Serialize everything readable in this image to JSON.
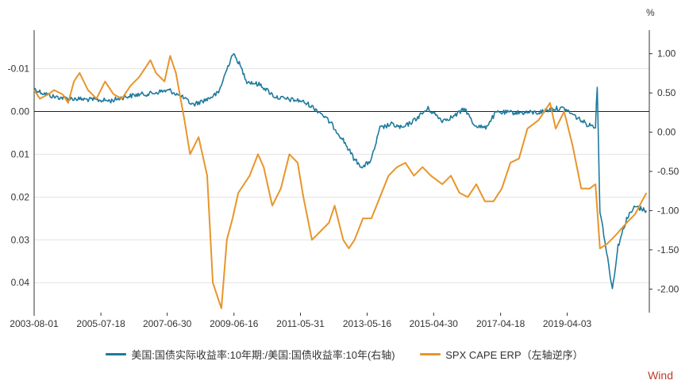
{
  "chart_data": {
    "type": "line",
    "left_axis": {
      "inverted": true,
      "range": [
        0.047,
        -0.019
      ],
      "ticks": [
        -0.01,
        0.0,
        0.01,
        0.02,
        0.03,
        0.04
      ],
      "tick_labels": [
        "-0.01",
        "0.00",
        "0.01",
        "0.02",
        "0.03",
        "0.04"
      ]
    },
    "right_axis": {
      "unit": "%",
      "range": [
        -2.3,
        1.3
      ],
      "ticks": [
        1.0,
        0.5,
        0.0,
        -0.5,
        -1.0,
        -1.5,
        -2.0
      ],
      "tick_labels": [
        "1.00",
        "0.50",
        "0.00",
        "-0.50",
        "-1.00",
        "-1.50",
        "-2.00"
      ]
    },
    "x_axis": {
      "range": [
        "2003-08-01",
        "2021-09-01"
      ],
      "ticks": [
        "2003-08-01",
        "2005-07-18",
        "2007-06-30",
        "2009-06-16",
        "2011-05-31",
        "2013-05-16",
        "2015-04-30",
        "2017-04-18",
        "2019-04-03"
      ]
    },
    "zero_line_axis": "left",
    "grid": "horizontal",
    "series": [
      {
        "name": "美国:国债实际收益率:10年期:/美国:国债收益率:10年(右轴)",
        "axis": "right",
        "color": "#1f7a9c",
        "noisy": true,
        "points": [
          [
            "2003-08-01",
            0.55
          ],
          [
            "2003-11-01",
            0.5
          ],
          [
            "2004-03-01",
            0.45
          ],
          [
            "2004-08-01",
            0.43
          ],
          [
            "2005-01-01",
            0.42
          ],
          [
            "2005-06-01",
            0.41
          ],
          [
            "2005-11-01",
            0.4
          ],
          [
            "2006-04-01",
            0.45
          ],
          [
            "2006-09-01",
            0.48
          ],
          [
            "2007-01-01",
            0.49
          ],
          [
            "2007-05-01",
            0.52
          ],
          [
            "2007-08-01",
            0.53
          ],
          [
            "2007-12-01",
            0.45
          ],
          [
            "2008-04-01",
            0.35
          ],
          [
            "2008-09-01",
            0.42
          ],
          [
            "2009-01-01",
            0.5
          ],
          [
            "2009-03-01",
            0.7
          ],
          [
            "2009-06-01",
            1.0
          ],
          [
            "2009-08-01",
            0.9
          ],
          [
            "2009-11-01",
            0.65
          ],
          [
            "2010-04-01",
            0.6
          ],
          [
            "2010-09-01",
            0.45
          ],
          [
            "2011-01-01",
            0.42
          ],
          [
            "2011-06-01",
            0.4
          ],
          [
            "2011-09-01",
            0.35
          ],
          [
            "2012-01-01",
            0.25
          ],
          [
            "2012-05-01",
            0.1
          ],
          [
            "2012-09-01",
            -0.1
          ],
          [
            "2013-01-01",
            -0.35
          ],
          [
            "2013-04-01",
            -0.45
          ],
          [
            "2013-07-01",
            -0.35
          ],
          [
            "2013-10-01",
            0.05
          ],
          [
            "2014-02-01",
            0.1
          ],
          [
            "2014-06-01",
            0.05
          ],
          [
            "2014-10-01",
            0.15
          ],
          [
            "2015-03-01",
            0.3
          ],
          [
            "2015-08-01",
            0.15
          ],
          [
            "2015-12-01",
            0.2
          ],
          [
            "2016-04-01",
            0.3
          ],
          [
            "2016-07-01",
            0.1
          ],
          [
            "2016-11-01",
            0.05
          ],
          [
            "2017-03-01",
            0.25
          ],
          [
            "2017-08-01",
            0.25
          ],
          [
            "2018-01-01",
            0.25
          ],
          [
            "2018-06-01",
            0.25
          ],
          [
            "2018-11-01",
            0.3
          ],
          [
            "2019-03-01",
            0.3
          ],
          [
            "2019-07-01",
            0.2
          ],
          [
            "2019-11-01",
            0.1
          ],
          [
            "2020-02-01",
            0.08
          ],
          [
            "2020-02-20",
            0.6
          ],
          [
            "2020-03-05",
            -0.2
          ],
          [
            "2020-03-20",
            -1.0
          ],
          [
            "2020-05-01",
            -1.3
          ],
          [
            "2020-08-01",
            -2.0
          ],
          [
            "2020-10-01",
            -1.45
          ],
          [
            "2021-01-01",
            -1.1
          ],
          [
            "2021-04-01",
            -0.95
          ],
          [
            "2021-08-01",
            -1.0
          ]
        ]
      },
      {
        "name": "SPX CAPE ERP（左轴逆序）",
        "axis": "left",
        "color": "#e8952a",
        "noisy": false,
        "points": [
          [
            "2003-08-01",
            -0.005
          ],
          [
            "2003-10-01",
            -0.003
          ],
          [
            "2004-01-01",
            -0.004
          ],
          [
            "2004-03-01",
            -0.005
          ],
          [
            "2004-06-01",
            -0.004
          ],
          [
            "2004-08-01",
            -0.002
          ],
          [
            "2004-10-01",
            -0.007
          ],
          [
            "2004-12-01",
            -0.009
          ],
          [
            "2005-03-01",
            -0.005
          ],
          [
            "2005-06-01",
            -0.003
          ],
          [
            "2005-09-01",
            -0.007
          ],
          [
            "2005-12-01",
            -0.004
          ],
          [
            "2006-03-01",
            -0.003
          ],
          [
            "2006-06-01",
            -0.006
          ],
          [
            "2006-09-01",
            -0.008
          ],
          [
            "2007-01-01",
            -0.012
          ],
          [
            "2007-03-01",
            -0.009
          ],
          [
            "2007-06-01",
            -0.007
          ],
          [
            "2007-08-01",
            -0.013
          ],
          [
            "2007-10-01",
            -0.009
          ],
          [
            "2008-01-01",
            0.002
          ],
          [
            "2008-03-01",
            0.01
          ],
          [
            "2008-06-01",
            0.006
          ],
          [
            "2008-09-01",
            0.015
          ],
          [
            "2008-11-01",
            0.04
          ],
          [
            "2009-02-01",
            0.046
          ],
          [
            "2009-04-01",
            0.03
          ],
          [
            "2009-06-01",
            0.025
          ],
          [
            "2009-08-01",
            0.019
          ],
          [
            "2009-12-01",
            0.015
          ],
          [
            "2010-03-01",
            0.01
          ],
          [
            "2010-05-01",
            0.013
          ],
          [
            "2010-08-01",
            0.022
          ],
          [
            "2010-11-01",
            0.018
          ],
          [
            "2011-02-01",
            0.01
          ],
          [
            "2011-05-01",
            0.012
          ],
          [
            "2011-07-01",
            0.02
          ],
          [
            "2011-10-01",
            0.03
          ],
          [
            "2012-01-01",
            0.028
          ],
          [
            "2012-04-01",
            0.026
          ],
          [
            "2012-06-01",
            0.022
          ],
          [
            "2012-09-01",
            0.03
          ],
          [
            "2012-11-01",
            0.032
          ],
          [
            "2013-01-01",
            0.03
          ],
          [
            "2013-04-01",
            0.025
          ],
          [
            "2013-07-01",
            0.025
          ],
          [
            "2013-10-01",
            0.02
          ],
          [
            "2014-01-01",
            0.015
          ],
          [
            "2014-04-01",
            0.013
          ],
          [
            "2014-07-01",
            0.012
          ],
          [
            "2014-10-01",
            0.015
          ],
          [
            "2015-01-01",
            0.013
          ],
          [
            "2015-04-01",
            0.015
          ],
          [
            "2015-08-01",
            0.017
          ],
          [
            "2015-11-01",
            0.015
          ],
          [
            "2016-02-01",
            0.019
          ],
          [
            "2016-05-01",
            0.02
          ],
          [
            "2016-08-01",
            0.017
          ],
          [
            "2016-11-01",
            0.021
          ],
          [
            "2017-02-01",
            0.021
          ],
          [
            "2017-05-01",
            0.018
          ],
          [
            "2017-08-01",
            0.012
          ],
          [
            "2017-11-01",
            0.011
          ],
          [
            "2018-02-01",
            0.004
          ],
          [
            "2018-06-01",
            0.002
          ],
          [
            "2018-10-01",
            -0.002
          ],
          [
            "2018-12-01",
            0.004
          ],
          [
            "2019-03-01",
            0.0
          ],
          [
            "2019-06-01",
            0.008
          ],
          [
            "2019-09-01",
            0.018
          ],
          [
            "2019-12-01",
            0.018
          ],
          [
            "2020-02-01",
            0.017
          ],
          [
            "2020-03-20",
            0.032
          ],
          [
            "2020-06-01",
            0.031
          ],
          [
            "2020-09-01",
            0.029
          ],
          [
            "2021-01-01",
            0.026
          ],
          [
            "2021-04-01",
            0.024
          ],
          [
            "2021-08-01",
            0.019
          ]
        ]
      }
    ]
  },
  "legend": {
    "series1": "美国:国债实际收益率:10年期:/美国:国债收益率:10年(右轴)",
    "series2": "SPX CAPE ERP（左轴逆序）"
  },
  "brand": "Wind",
  "right_unit": "%"
}
